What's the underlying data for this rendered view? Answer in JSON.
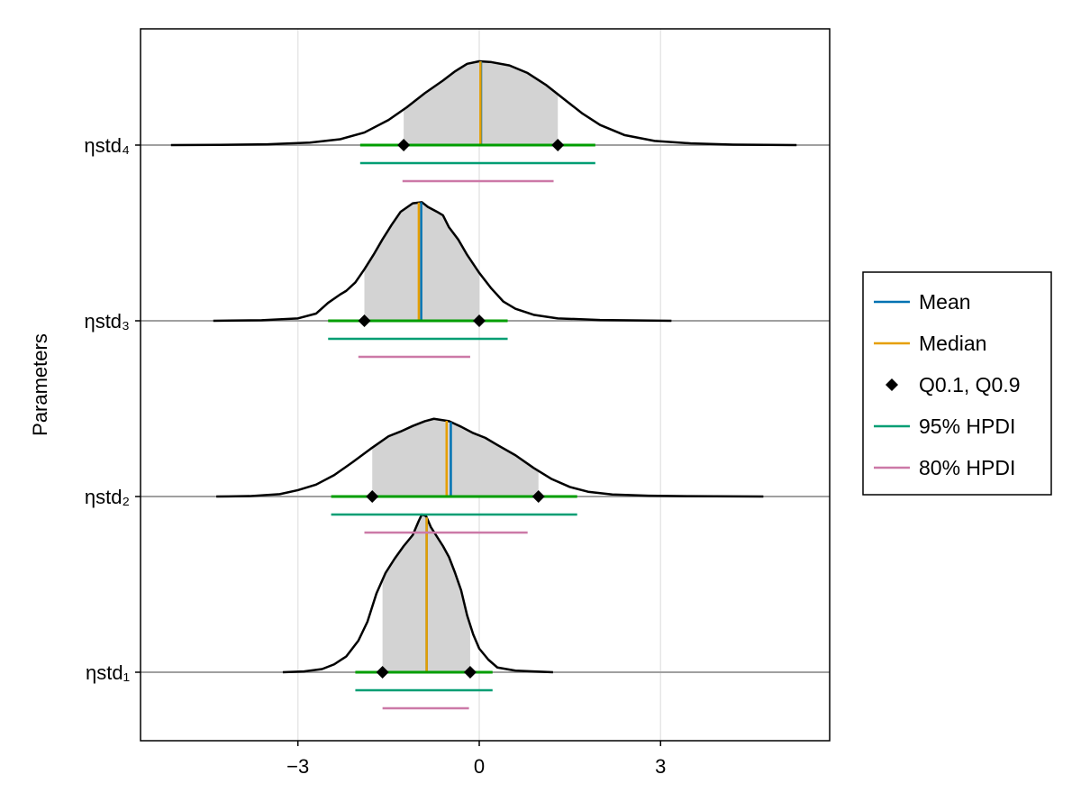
{
  "chart_data": {
    "type": "density",
    "title": "",
    "ylabel": "Parameters",
    "xlabel": "",
    "xlim": [
      -5.2,
      5.8
    ],
    "xticks": [
      -3,
      0,
      3
    ],
    "xtick_labels": [
      "−3",
      "0",
      "3"
    ],
    "grid": true,
    "legend_position": "right",
    "colors": {
      "mean": "#0072b2",
      "median": "#e69f00",
      "hpdi95": "#009e73",
      "hpdi80": "#cc79a7",
      "q_band": "#009e00",
      "fill": "#d3d3d3",
      "baseline": "#a0a0a0"
    },
    "legend": [
      {
        "key": "mean",
        "label": "Mean",
        "marker": "line",
        "color": "#0072b2"
      },
      {
        "key": "median",
        "label": "Median",
        "marker": "line",
        "color": "#e69f00"
      },
      {
        "key": "quantiles",
        "label": "Q0.1, Q0.9",
        "marker": "diamond",
        "color": "#000000"
      },
      {
        "key": "hpdi95",
        "label": "95% HPDI",
        "marker": "line",
        "color": "#009e73"
      },
      {
        "key": "hpdi80",
        "label": "80% HPDI",
        "marker": "line",
        "color": "#cc79a7"
      }
    ],
    "parameters": [
      {
        "name": "ηstd₁",
        "xmin": -3.25,
        "xmax": 1.22,
        "mean": -0.87,
        "median": -0.87,
        "q10": -1.6,
        "q90": -0.15,
        "hpdi95": [
          -2.05,
          0.22
        ],
        "hpdi80": [
          -1.6,
          -0.17
        ],
        "curve": [
          [
            -3.25,
            0.0
          ],
          [
            -2.9,
            0.005
          ],
          [
            -2.6,
            0.02
          ],
          [
            -2.4,
            0.05
          ],
          [
            -2.2,
            0.1
          ],
          [
            -2.0,
            0.2
          ],
          [
            -1.85,
            0.32
          ],
          [
            -1.7,
            0.5
          ],
          [
            -1.55,
            0.63
          ],
          [
            -1.4,
            0.72
          ],
          [
            -1.25,
            0.8
          ],
          [
            -1.1,
            0.87
          ],
          [
            -1.0,
            0.96
          ],
          [
            -0.95,
            1.0
          ],
          [
            -0.88,
            0.99
          ],
          [
            -0.8,
            0.92
          ],
          [
            -0.7,
            0.86
          ],
          [
            -0.6,
            0.8
          ],
          [
            -0.5,
            0.73
          ],
          [
            -0.4,
            0.63
          ],
          [
            -0.3,
            0.52
          ],
          [
            -0.2,
            0.36
          ],
          [
            -0.1,
            0.24
          ],
          [
            0.0,
            0.15
          ],
          [
            0.15,
            0.08
          ],
          [
            0.3,
            0.03
          ],
          [
            0.6,
            0.01
          ],
          [
            1.22,
            0.0
          ]
        ]
      },
      {
        "name": "ηstd₂",
        "xmin": -4.35,
        "xmax": 4.7,
        "mean": -0.47,
        "median": -0.54,
        "q10": -1.77,
        "q90": 0.98,
        "hpdi95": [
          -2.45,
          1.62
        ],
        "hpdi80": [
          -1.9,
          0.8
        ],
        "curve": [
          [
            -4.35,
            0.0
          ],
          [
            -3.8,
            0.005
          ],
          [
            -3.3,
            0.03
          ],
          [
            -3.0,
            0.08
          ],
          [
            -2.7,
            0.15
          ],
          [
            -2.4,
            0.27
          ],
          [
            -2.1,
            0.43
          ],
          [
            -1.8,
            0.6
          ],
          [
            -1.5,
            0.76
          ],
          [
            -1.3,
            0.82
          ],
          [
            -1.1,
            0.89
          ],
          [
            -0.9,
            0.95
          ],
          [
            -0.75,
            0.98
          ],
          [
            -0.5,
            0.95
          ],
          [
            -0.3,
            0.88
          ],
          [
            -0.1,
            0.8
          ],
          [
            0.1,
            0.74
          ],
          [
            0.3,
            0.65
          ],
          [
            0.6,
            0.52
          ],
          [
            0.9,
            0.36
          ],
          [
            1.2,
            0.22
          ],
          [
            1.5,
            0.12
          ],
          [
            1.8,
            0.06
          ],
          [
            2.2,
            0.025
          ],
          [
            2.8,
            0.01
          ],
          [
            3.5,
            0.004
          ],
          [
            4.7,
            0.0
          ]
        ]
      },
      {
        "name": "ηstd₃",
        "xmin": -4.4,
        "xmax": 3.18,
        "mean": -0.96,
        "median": -1.0,
        "q10": -1.9,
        "q90": 0.0,
        "hpdi95": [
          -2.5,
          0.47
        ],
        "hpdi80": [
          -2.0,
          -0.15
        ],
        "curve": [
          [
            -4.4,
            0.0
          ],
          [
            -3.6,
            0.005
          ],
          [
            -3.0,
            0.02
          ],
          [
            -2.7,
            0.06
          ],
          [
            -2.5,
            0.15
          ],
          [
            -2.3,
            0.22
          ],
          [
            -2.2,
            0.25
          ],
          [
            -2.05,
            0.32
          ],
          [
            -1.9,
            0.43
          ],
          [
            -1.75,
            0.55
          ],
          [
            -1.6,
            0.68
          ],
          [
            -1.45,
            0.8
          ],
          [
            -1.3,
            0.91
          ],
          [
            -1.1,
            0.98
          ],
          [
            -0.95,
            0.99
          ],
          [
            -0.85,
            0.95
          ],
          [
            -0.7,
            0.91
          ],
          [
            -0.6,
            0.88
          ],
          [
            -0.5,
            0.78
          ],
          [
            -0.35,
            0.68
          ],
          [
            -0.2,
            0.55
          ],
          [
            0.0,
            0.4
          ],
          [
            0.2,
            0.27
          ],
          [
            0.4,
            0.16
          ],
          [
            0.6,
            0.1
          ],
          [
            0.9,
            0.05
          ],
          [
            1.3,
            0.02
          ],
          [
            2.0,
            0.007
          ],
          [
            3.18,
            0.0
          ]
        ]
      },
      {
        "name": "ηstd₄",
        "xmin": -5.1,
        "xmax": 5.25,
        "mean": 0.03,
        "median": 0.02,
        "q10": -1.25,
        "q90": 1.3,
        "hpdi95": [
          -1.97,
          1.92
        ],
        "hpdi80": [
          -1.27,
          1.23
        ],
        "curve": [
          [
            -5.1,
            0.0
          ],
          [
            -4.3,
            0.002
          ],
          [
            -3.5,
            0.01
          ],
          [
            -2.8,
            0.03
          ],
          [
            -2.3,
            0.07
          ],
          [
            -1.9,
            0.15
          ],
          [
            -1.5,
            0.3
          ],
          [
            -1.2,
            0.45
          ],
          [
            -0.9,
            0.62
          ],
          [
            -0.6,
            0.77
          ],
          [
            -0.4,
            0.88
          ],
          [
            -0.2,
            0.97
          ],
          [
            0.0,
            1.0
          ],
          [
            0.2,
            0.99
          ],
          [
            0.5,
            0.95
          ],
          [
            0.8,
            0.86
          ],
          [
            1.1,
            0.72
          ],
          [
            1.4,
            0.55
          ],
          [
            1.7,
            0.38
          ],
          [
            2.0,
            0.24
          ],
          [
            2.4,
            0.12
          ],
          [
            2.9,
            0.05
          ],
          [
            3.5,
            0.02
          ],
          [
            4.2,
            0.006
          ],
          [
            5.25,
            0.0
          ]
        ]
      }
    ]
  }
}
